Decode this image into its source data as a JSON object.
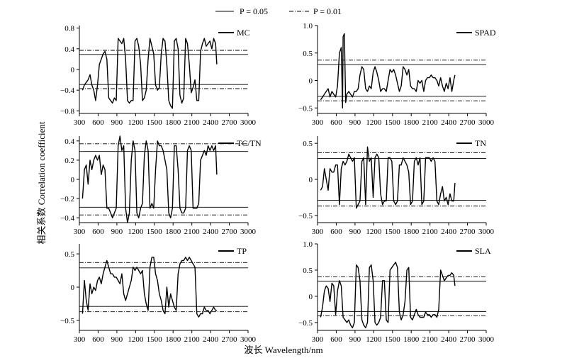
{
  "figure": {
    "legend": {
      "solid_label": "P = 0.05",
      "dashdot_label": "P = 0.01",
      "placement": "top-center"
    },
    "xlabel": "波长 Wavelength/nm",
    "ylabel": "相关系数 Correlation coefficient",
    "line_color": "#000000"
  },
  "chart_data": [
    {
      "type": "line",
      "panel": "top-left",
      "series_label": "MC",
      "xlim": [
        300,
        3000
      ],
      "ylim": [
        -0.85,
        0.85
      ],
      "xticks": [
        300,
        600,
        900,
        1200,
        1500,
        1800,
        2100,
        2400,
        2700,
        3000
      ],
      "yticks": [
        -0.8,
        -0.4,
        0,
        0.4,
        0.8
      ],
      "ytick_labels": [
        "−0.8",
        "−0.4",
        "0",
        "0.4",
        "0.8"
      ],
      "thresholds": {
        "p05": 0.29,
        "p01": 0.37
      },
      "x": [
        350,
        380,
        410,
        440,
        470,
        500,
        530,
        560,
        590,
        620,
        650,
        680,
        710,
        740,
        770,
        800,
        830,
        860,
        890,
        920,
        950,
        980,
        1010,
        1040,
        1070,
        1100,
        1130,
        1160,
        1190,
        1220,
        1250,
        1280,
        1310,
        1340,
        1370,
        1400,
        1430,
        1460,
        1490,
        1520,
        1550,
        1580,
        1610,
        1640,
        1670,
        1700,
        1730,
        1760,
        1790,
        1820,
        1850,
        1880,
        1910,
        1940,
        1970,
        2000,
        2030,
        2060,
        2090,
        2120,
        2150,
        2180,
        2210,
        2240,
        2270,
        2300,
        2330,
        2360,
        2390,
        2420,
        2450,
        2480,
        2500
      ],
      "y": [
        -0.4,
        -0.3,
        -0.25,
        -0.2,
        -0.1,
        -0.3,
        -0.4,
        -0.6,
        -0.3,
        0.1,
        0.2,
        0.3,
        0.35,
        0.2,
        -0.55,
        -0.6,
        -0.65,
        -0.55,
        -0.6,
        0.6,
        0.55,
        0.5,
        0.6,
        0.2,
        -0.6,
        -0.65,
        -0.6,
        -0.6,
        0.55,
        0.6,
        0.45,
        0.1,
        -0.6,
        -0.55,
        -0.4,
        0.2,
        0.6,
        0.45,
        0.3,
        -0.3,
        -0.4,
        -0.35,
        0.3,
        0.6,
        0.55,
        0.1,
        -0.6,
        -0.7,
        -0.75,
        0.55,
        0.6,
        0.4,
        -0.5,
        -0.65,
        -0.55,
        0.6,
        0.5,
        0.1,
        -0.45,
        -0.35,
        -0.2,
        -0.6,
        -0.6,
        0.35,
        0.5,
        0.6,
        0.45,
        0.5,
        0.55,
        0.4,
        0.6,
        0.5,
        0.1
      ]
    },
    {
      "type": "line",
      "panel": "top-right",
      "series_label": "SPAD",
      "xlim": [
        300,
        3000
      ],
      "ylim": [
        -0.6,
        1.0
      ],
      "xticks": [
        300,
        600,
        900,
        1200,
        1500,
        1800,
        2100,
        2400,
        2700,
        3000
      ],
      "yticks": [
        -0.5,
        0,
        0.5,
        1.0
      ],
      "ytick_labels": [
        "−0.5",
        "0",
        "0.5",
        "1.0"
      ],
      "thresholds": {
        "p05": 0.29,
        "p01": 0.37
      },
      "x": [
        350,
        380,
        410,
        440,
        470,
        500,
        530,
        560,
        590,
        620,
        650,
        680,
        700,
        710,
        730,
        750,
        770,
        800,
        830,
        860,
        890,
        920,
        950,
        980,
        1010,
        1040,
        1070,
        1100,
        1130,
        1160,
        1190,
        1220,
        1250,
        1280,
        1310,
        1340,
        1370,
        1400,
        1430,
        1460,
        1490,
        1520,
        1550,
        1580,
        1610,
        1640,
        1670,
        1700,
        1730,
        1760,
        1790,
        1820,
        1850,
        1880,
        1910,
        1940,
        1970,
        2000,
        2030,
        2060,
        2090,
        2120,
        2150,
        2180,
        2210,
        2240,
        2270,
        2300,
        2330,
        2360,
        2390,
        2420,
        2450,
        2480,
        2500
      ],
      "y": [
        -0.35,
        -0.3,
        -0.25,
        -0.2,
        -0.15,
        -0.3,
        -0.2,
        -0.25,
        -0.3,
        -0.1,
        0.5,
        0.6,
        -0.5,
        0.8,
        0.85,
        -0.4,
        -0.25,
        -0.2,
        -0.25,
        -0.3,
        -0.2,
        -0.2,
        -0.15,
        0.1,
        0.25,
        0.2,
        -0.15,
        -0.2,
        -0.1,
        -0.15,
        0.15,
        0.25,
        0.15,
        0.0,
        -0.2,
        -0.15,
        -0.15,
        -0.2,
        0.0,
        0.2,
        0.15,
        0.2,
        0.1,
        -0.05,
        -0.2,
        -0.1,
        0.25,
        0.2,
        0.1,
        0.2,
        -0.1,
        -0.15,
        -0.15,
        -0.2,
        0.0,
        -0.05,
        0.0,
        -0.2,
        0.0,
        0.05,
        0.05,
        0.1,
        0.05,
        0.05,
        0.0,
        -0.1,
        0.05,
        -0.1,
        -0.2,
        -0.05,
        -0.15,
        0.05,
        -0.2,
        0.0,
        0.1
      ]
    },
    {
      "type": "line",
      "panel": "middle-left",
      "series_label": "TC/TN",
      "xlim": [
        300,
        3000
      ],
      "ylim": [
        -0.45,
        0.45
      ],
      "xticks": [
        300,
        600,
        900,
        1200,
        1500,
        1800,
        2100,
        2400,
        2700,
        3000
      ],
      "yticks": [
        -0.4,
        -0.2,
        0,
        0.2,
        0.4
      ],
      "ytick_labels": [
        "−0.4",
        "−0.2",
        "0",
        "0.2",
        "0.4"
      ],
      "thresholds": {
        "p05": 0.29,
        "p01": 0.37
      },
      "x": [
        350,
        380,
        410,
        440,
        470,
        500,
        530,
        560,
        590,
        620,
        650,
        680,
        710,
        740,
        770,
        800,
        830,
        860,
        890,
        920,
        950,
        980,
        1010,
        1040,
        1070,
        1100,
        1130,
        1160,
        1190,
        1220,
        1250,
        1280,
        1310,
        1340,
        1370,
        1400,
        1430,
        1460,
        1490,
        1520,
        1550,
        1580,
        1610,
        1640,
        1670,
        1700,
        1730,
        1760,
        1790,
        1820,
        1850,
        1880,
        1910,
        1940,
        1970,
        2000,
        2030,
        2060,
        2090,
        2120,
        2150,
        2180,
        2210,
        2240,
        2270,
        2300,
        2330,
        2360,
        2390,
        2420,
        2450,
        2480,
        2500
      ],
      "y": [
        -0.2,
        0.1,
        0.15,
        -0.05,
        0.2,
        0.1,
        0.2,
        0.25,
        0.2,
        0.25,
        0.05,
        0.15,
        0.1,
        -0.3,
        -0.3,
        -0.35,
        -0.4,
        -0.35,
        -0.3,
        0.35,
        0.45,
        0.3,
        0.35,
        -0.3,
        -0.45,
        -0.35,
        0.2,
        0.4,
        0.3,
        -0.35,
        -0.4,
        -0.3,
        -0.25,
        0.25,
        0.4,
        0.3,
        -0.3,
        -0.25,
        -0.3,
        0.1,
        0.4,
        0.35,
        0.35,
        0.3,
        0.2,
        0.1,
        -0.35,
        -0.4,
        -0.3,
        0.35,
        0.35,
        0.1,
        -0.3,
        -0.35,
        -0.35,
        -0.3,
        0.3,
        0.35,
        0.3,
        -0.3,
        -0.3,
        -0.3,
        -0.25,
        0.2,
        0.25,
        0.3,
        0.25,
        0.35,
        0.3,
        0.35,
        0.3,
        0.35,
        0.05
      ]
    },
    {
      "type": "line",
      "panel": "middle-right",
      "series_label": "TN",
      "xlim": [
        300,
        3000
      ],
      "ylim": [
        -0.6,
        0.6
      ],
      "xticks": [
        300,
        600,
        900,
        1200,
        1500,
        1800,
        2100,
        2400,
        2700,
        3000
      ],
      "yticks": [
        -0.5,
        0,
        0.5
      ],
      "ytick_labels": [
        "−0.5",
        "0",
        "0.5"
      ],
      "thresholds": {
        "p05": 0.29,
        "p01": 0.37
      },
      "x": [
        350,
        380,
        410,
        440,
        470,
        500,
        530,
        560,
        590,
        620,
        650,
        680,
        710,
        740,
        770,
        800,
        830,
        860,
        890,
        920,
        950,
        980,
        1010,
        1040,
        1070,
        1100,
        1130,
        1160,
        1190,
        1220,
        1250,
        1280,
        1310,
        1340,
        1370,
        1400,
        1430,
        1460,
        1490,
        1520,
        1550,
        1580,
        1610,
        1640,
        1670,
        1700,
        1730,
        1760,
        1790,
        1820,
        1850,
        1880,
        1910,
        1940,
        1970,
        2000,
        2030,
        2060,
        2090,
        2120,
        2150,
        2180,
        2210,
        2240,
        2270,
        2300,
        2330,
        2360,
        2390,
        2420,
        2450,
        2480,
        2500
      ],
      "y": [
        -0.15,
        -0.1,
        0.15,
        0.0,
        -0.15,
        0.15,
        0.1,
        0.1,
        0.2,
        0.2,
        -0.35,
        0.15,
        0.25,
        0.2,
        0.25,
        0.35,
        0.3,
        0.25,
        0.3,
        -0.4,
        -0.35,
        -0.3,
        0.25,
        0.3,
        -0.35,
        0.45,
        0.25,
        0.3,
        -0.25,
        0.3,
        0.35,
        0.3,
        -0.2,
        -0.35,
        -0.3,
        -0.3,
        0.3,
        0.3,
        0.25,
        -0.3,
        -0.35,
        -0.3,
        0.2,
        0.2,
        0.3,
        0.25,
        0.2,
        0.1,
        -0.35,
        -0.3,
        0.25,
        0.3,
        0.2,
        0.3,
        -0.35,
        -0.3,
        0.3,
        0.3,
        0.3,
        0.25,
        0.3,
        0.25,
        -0.3,
        -0.35,
        -0.2,
        -0.1,
        -0.3,
        -0.25,
        -0.35,
        -0.2,
        -0.3,
        -0.3,
        -0.05
      ]
    },
    {
      "type": "line",
      "panel": "bottom-left",
      "series_label": "TP",
      "xlim": [
        300,
        3000
      ],
      "ylim": [
        -0.65,
        0.65
      ],
      "xticks": [
        300,
        600,
        900,
        1200,
        1500,
        1800,
        2100,
        2400,
        2700,
        3000
      ],
      "yticks": [
        -0.5,
        0,
        0.5
      ],
      "ytick_labels": [
        "−0.5",
        "0",
        "0.5"
      ],
      "thresholds": {
        "p05": 0.29,
        "p01": 0.37
      },
      "x": [
        350,
        380,
        410,
        440,
        470,
        500,
        530,
        560,
        590,
        620,
        650,
        680,
        710,
        740,
        770,
        800,
        830,
        860,
        890,
        920,
        950,
        980,
        1010,
        1040,
        1070,
        1100,
        1130,
        1160,
        1190,
        1220,
        1250,
        1280,
        1310,
        1340,
        1370,
        1400,
        1430,
        1460,
        1490,
        1520,
        1550,
        1580,
        1610,
        1640,
        1670,
        1700,
        1730,
        1760,
        1790,
        1820,
        1850,
        1880,
        1910,
        1940,
        1970,
        2000,
        2030,
        2060,
        2090,
        2120,
        2150,
        2180,
        2210,
        2240,
        2270,
        2300,
        2330,
        2360,
        2390,
        2420,
        2450,
        2480,
        2500
      ],
      "y": [
        -0.4,
        0.1,
        -0.2,
        -0.35,
        0.05,
        -0.1,
        0.0,
        -0.05,
        0.1,
        0.15,
        0.05,
        0.2,
        0.3,
        0.4,
        0.3,
        0.2,
        0.2,
        0.15,
        0.15,
        0.1,
        0.05,
        0.2,
        -0.1,
        -0.2,
        -0.1,
        0.0,
        0.1,
        0.3,
        0.25,
        0.3,
        0.25,
        0.2,
        0.25,
        -0.1,
        -0.25,
        -0.35,
        0.3,
        0.45,
        0.45,
        0.2,
        0.1,
        -0.1,
        -0.2,
        -0.35,
        -0.4,
        0.0,
        -0.3,
        -0.1,
        -0.2,
        -0.3,
        -0.35,
        0.2,
        0.35,
        0.4,
        0.4,
        0.45,
        0.4,
        0.45,
        0.4,
        0.35,
        0.3,
        -0.4,
        -0.45,
        -0.4,
        -0.4,
        -0.3,
        -0.35,
        -0.35,
        -0.4,
        -0.35,
        -0.3,
        -0.35,
        -0.35
      ]
    },
    {
      "type": "line",
      "panel": "bottom-right",
      "series_label": "SLA",
      "xlim": [
        300,
        3000
      ],
      "ylim": [
        -0.65,
        1.0
      ],
      "xticks": [
        300,
        600,
        900,
        1200,
        1500,
        1800,
        2100,
        2400,
        2700,
        3000
      ],
      "yticks": [
        -0.5,
        0,
        0.5,
        1.0
      ],
      "ytick_labels": [
        "−0.5",
        "0",
        "0.5",
        "1.0"
      ],
      "thresholds": {
        "p05": 0.29,
        "p01": 0.37
      },
      "x": [
        350,
        380,
        410,
        440,
        470,
        500,
        530,
        560,
        590,
        620,
        650,
        680,
        710,
        740,
        770,
        800,
        830,
        860,
        890,
        920,
        950,
        980,
        1010,
        1040,
        1070,
        1100,
        1130,
        1160,
        1190,
        1220,
        1250,
        1280,
        1310,
        1340,
        1370,
        1400,
        1430,
        1460,
        1490,
        1520,
        1550,
        1580,
        1610,
        1640,
        1670,
        1700,
        1730,
        1760,
        1790,
        1820,
        1850,
        1880,
        1910,
        1940,
        1970,
        2000,
        2030,
        2060,
        2090,
        2120,
        2150,
        2180,
        2210,
        2240,
        2270,
        2300,
        2330,
        2360,
        2390,
        2420,
        2450,
        2480,
        2500
      ],
      "y": [
        -0.4,
        -0.2,
        0.1,
        0.2,
        0.15,
        -0.1,
        0.25,
        0.2,
        -0.35,
        0.1,
        0.3,
        0.2,
        -0.4,
        -0.45,
        -0.5,
        -0.45,
        -0.55,
        -0.6,
        -0.5,
        0.6,
        0.55,
        0.3,
        -0.45,
        -0.55,
        -0.6,
        -0.5,
        0.55,
        0.6,
        0.3,
        -0.5,
        -0.55,
        -0.5,
        -0.4,
        0.3,
        0.3,
        -0.45,
        -0.5,
        0.5,
        0.55,
        0.6,
        0.65,
        0.55,
        -0.3,
        -0.45,
        -0.35,
        -0.1,
        0.5,
        0.55,
        -0.4,
        -0.45,
        -0.35,
        -0.25,
        -0.35,
        -0.4,
        -0.4,
        -0.4,
        -0.3,
        -0.35,
        -0.35,
        -0.4,
        -0.35,
        -0.35,
        -0.4,
        -0.25,
        0.5,
        0.4,
        0.3,
        0.35,
        0.4,
        0.4,
        0.45,
        0.4,
        0.2
      ]
    }
  ]
}
